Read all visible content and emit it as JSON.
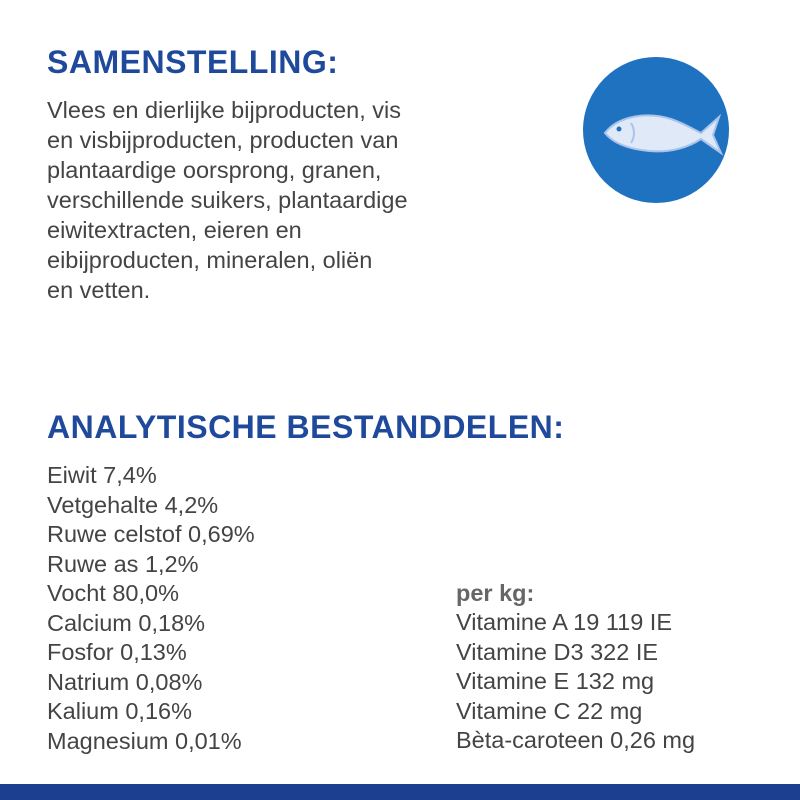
{
  "composition": {
    "title": "SAMENSTELLING:",
    "lines": [
      "Vlees en dierlijke bijproducten, vis",
      "en visbijproducten, producten van",
      "plantaardige oorsprong, granen,",
      "verschillende suikers, plantaardige",
      "eiwitextracten, eieren en",
      "eibijproducten, mineralen, oliën",
      "en vetten."
    ]
  },
  "analysis": {
    "title": "ANALYTISCHE BESTANDDELEN:",
    "items": [
      "Eiwit 7,4%",
      "Vetgehalte 4,2%",
      "Ruwe celstof 0,69%",
      "Ruwe as 1,2%",
      "Vocht 80,0%",
      "Calcium 0,18%",
      "Fosfor 0,13%",
      "Natrium 0,08%",
      "Kalium 0,16%",
      "Magnesium 0,01%"
    ],
    "per_kg": {
      "heading": "per kg:",
      "items": [
        "Vitamine A 19 119 IE",
        "Vitamine D3 322 IE",
        "Vitamine E 132 mg",
        "Vitamine C 22 mg",
        "Bèta-caroteen 0,26 mg"
      ]
    }
  }
}
